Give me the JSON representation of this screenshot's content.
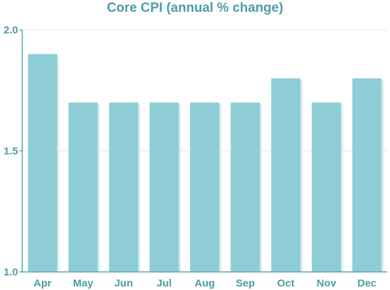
{
  "chart_data": {
    "type": "bar",
    "title": "Core CPI (annual % change)",
    "xlabel": "",
    "ylabel": "",
    "categories": [
      "Apr",
      "May",
      "Jun",
      "Jul",
      "Aug",
      "Sep",
      "Oct",
      "Nov",
      "Dec"
    ],
    "values": [
      1.9,
      1.7,
      1.7,
      1.7,
      1.7,
      1.7,
      1.8,
      1.7,
      1.8
    ],
    "ylim": [
      1.0,
      2.0
    ],
    "yticks": [
      "1.0",
      "1.5",
      "2.0"
    ],
    "grid": true,
    "legend": "none"
  },
  "colors": {
    "bar": "#8ecdd6",
    "bar_shadow": "#d9ecef",
    "text": "#4f9da5",
    "axis": "#5aa6ae",
    "grid": "#e6e6e6"
  }
}
